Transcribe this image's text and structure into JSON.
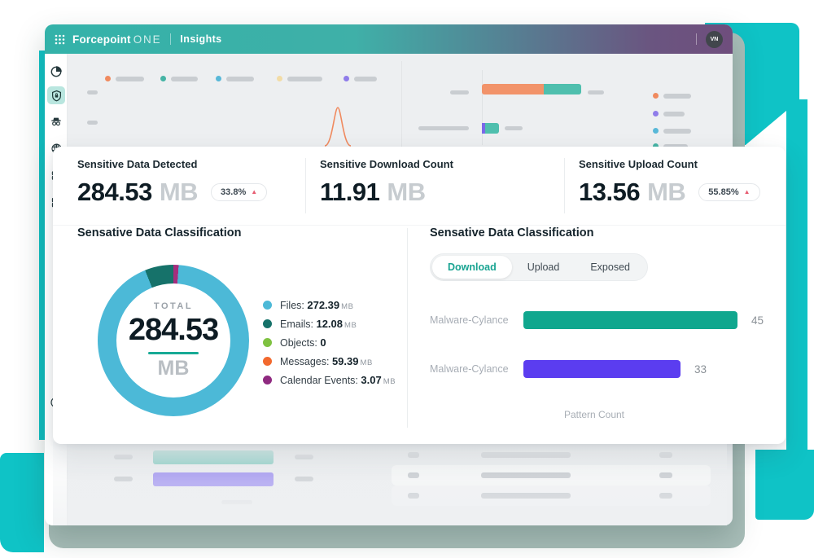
{
  "topbar": {
    "brand": "Forcepoint",
    "brand_suffix": "ONE",
    "app_name": "Insights",
    "avatar_initials": "VN"
  },
  "sidebar": {
    "items": [
      "analytics",
      "data-protection",
      "private-access",
      "web-security",
      "infrastructure",
      "applications"
    ],
    "active_item": "data-protection",
    "help": "?"
  },
  "stats": [
    {
      "title": "Sensitive Data Detected",
      "value": "284.53",
      "unit": "MB",
      "badge": "33.8%",
      "badge_icon": "▲"
    },
    {
      "title": "Sensitive Download Count",
      "value": "11.91",
      "unit": "MB"
    },
    {
      "title": "Sensitive Upload Count",
      "value": "13.56",
      "unit": "MB",
      "badge": "55.85%",
      "badge_icon": "▲"
    }
  ],
  "classification_donut": {
    "title": "Sensative Data Classification",
    "center": {
      "label": "TOTAL",
      "value": "284.53",
      "unit": "MB"
    },
    "legend": [
      {
        "label": "Files:",
        "value": "272.39",
        "unit": "MB",
        "color": "#4cb9d7"
      },
      {
        "label": "Emails:",
        "value": "12.08",
        "unit": "MB",
        "color": "#16726a"
      },
      {
        "label": "Objects:",
        "value": "0",
        "unit": "",
        "color": "#7fc241"
      },
      {
        "label": "Messages:",
        "value": "59.39",
        "unit": "MB",
        "color": "#f2692e"
      },
      {
        "label": "Calendar Events:",
        "value": "3.07",
        "unit": "MB",
        "color": "#8f2a80"
      }
    ],
    "segments": [
      {
        "color": "#a52d7d",
        "deg": 4
      },
      {
        "color": "#4cb9d7",
        "deg": 334
      },
      {
        "color": "#16726a",
        "deg": 22
      }
    ]
  },
  "classification_bars": {
    "title": "Sensative Data Classification",
    "tabs": [
      {
        "label": "Download",
        "active": true
      },
      {
        "label": "Upload",
        "active": false
      },
      {
        "label": "Exposed",
        "active": false
      }
    ],
    "xlabel": "Pattern Count",
    "axis_max": 47,
    "rows": [
      {
        "label": "Malware-Cylance",
        "value": 45,
        "color": "#10a78e"
      },
      {
        "label": "Malware-Cylance",
        "value": 33,
        "color": "#5b3df0"
      }
    ]
  },
  "background_dashboard": {
    "legend_dots": [
      "#f08a5f",
      "#45b4a5",
      "#58b8d8",
      "#f2dca6",
      "#8f7cea"
    ],
    "right_legend_dots": [
      "#f08a5f",
      "#8f7cea",
      "#58b8d8",
      "#45b4a5"
    ],
    "row1_bar_colors": [
      "#f2936a",
      "#4fbfae"
    ],
    "row2_bar_colors": [
      "#7a68e8",
      "#4fbfae"
    ],
    "bottom_bar_colors": [
      "#79cabe",
      "#9d8ff2"
    ],
    "spike_color": "#f08a5f"
  },
  "colors": {
    "accent_teal": "#0fc3c6",
    "pedestal": "#a9beb9",
    "topbar_gradient_start": "#33b2a9",
    "topbar_gradient_end": "#6f4e7d",
    "badge_trend_up": "#e75e73"
  }
}
